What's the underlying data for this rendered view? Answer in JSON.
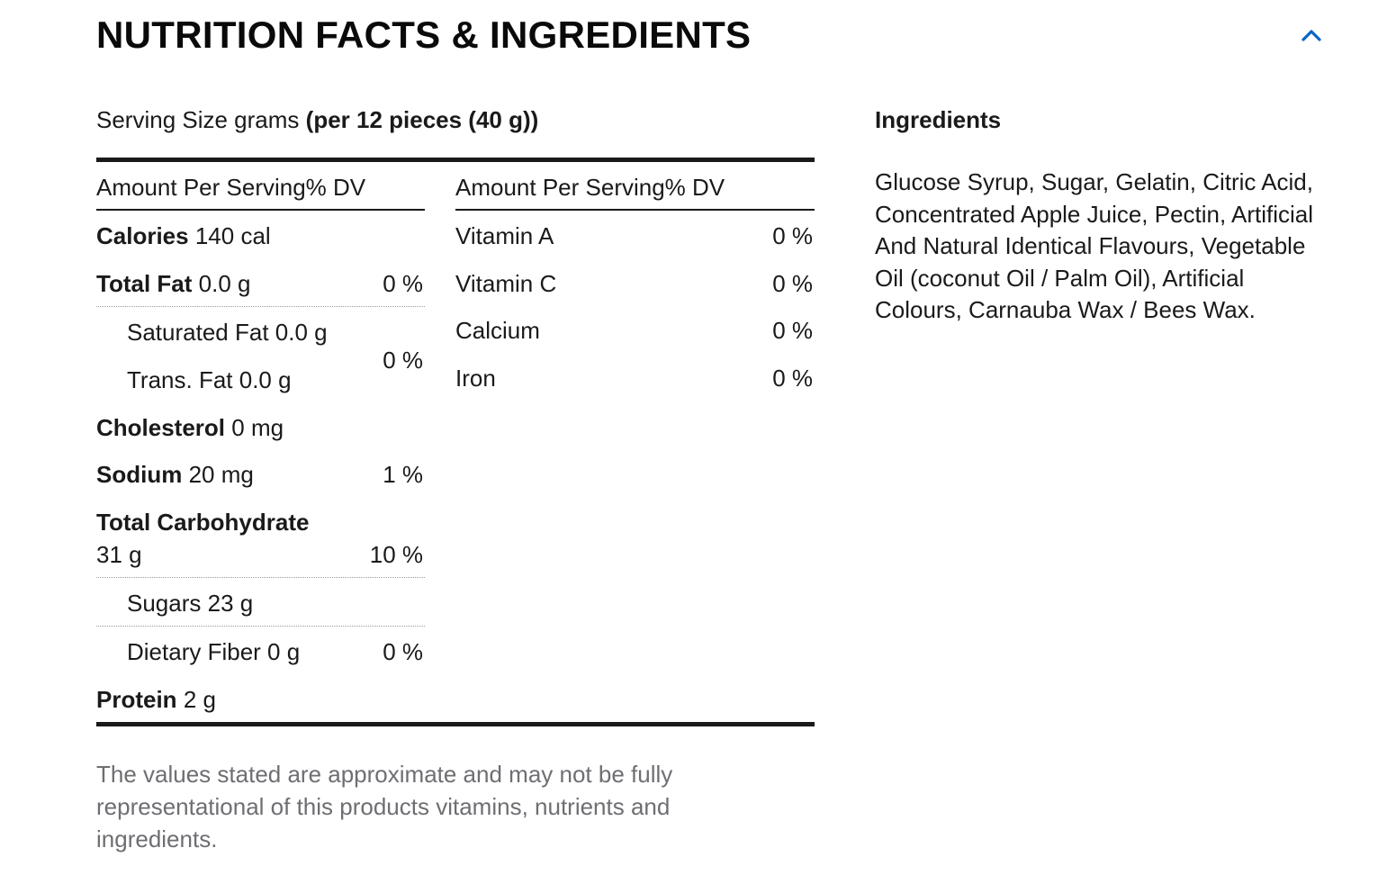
{
  "section": {
    "title": "NUTRITION FACTS & INGREDIENTS",
    "toggle_icon": "chevron-up-icon",
    "accent_color": "#0a64c8"
  },
  "serving": {
    "label": "Serving Size grams",
    "value": "(per 12 pieces (40 g))"
  },
  "nutrition": {
    "column_header": "Amount Per Serving% DV",
    "calories": {
      "label": "Calories",
      "amount": "140 cal"
    },
    "total_fat": {
      "label": "Total Fat",
      "amount": "0.0 g",
      "dv": "0 %"
    },
    "saturated_fat": {
      "label": "Saturated Fat 0.0 g"
    },
    "trans_fat": {
      "label": "Trans. Fat 0.0 g"
    },
    "sat_trans_dv": "0 %",
    "cholesterol": {
      "label": "Cholesterol",
      "amount": "0 mg"
    },
    "sodium": {
      "label": "Sodium",
      "amount": "20 mg",
      "dv": "1 %"
    },
    "total_carbohydrate": {
      "label": "Total Carbohydrate",
      "amount": "31 g",
      "dv": "10 %"
    },
    "sugars": {
      "label": "Sugars 23 g"
    },
    "dietary_fiber": {
      "label": "Dietary Fiber 0 g",
      "dv": "0 %"
    },
    "protein": {
      "label": "Protein",
      "amount": "2 g"
    }
  },
  "vitamins": {
    "column_header": "Amount Per Serving% DV",
    "items": [
      {
        "label": "Vitamin A",
        "dv": "0 %"
      },
      {
        "label": "Vitamin C",
        "dv": "0 %"
      },
      {
        "label": "Calcium",
        "dv": "0 %"
      },
      {
        "label": "Iron",
        "dv": "0 %"
      }
    ]
  },
  "ingredients": {
    "title": "Ingredients",
    "text": "Glucose Syrup, Sugar, Gelatin, Citric Acid, Concentrated Apple Juice, Pectin, Artificial And Natural Identical Flavours, Vegetable Oil (coconut Oil / Palm Oil), Artificial Colours, Carnauba Wax / Bees Wax."
  },
  "disclaimer": "The values stated are approximate and may not be fully representational of this products vitamins, nutrients and ingredients."
}
